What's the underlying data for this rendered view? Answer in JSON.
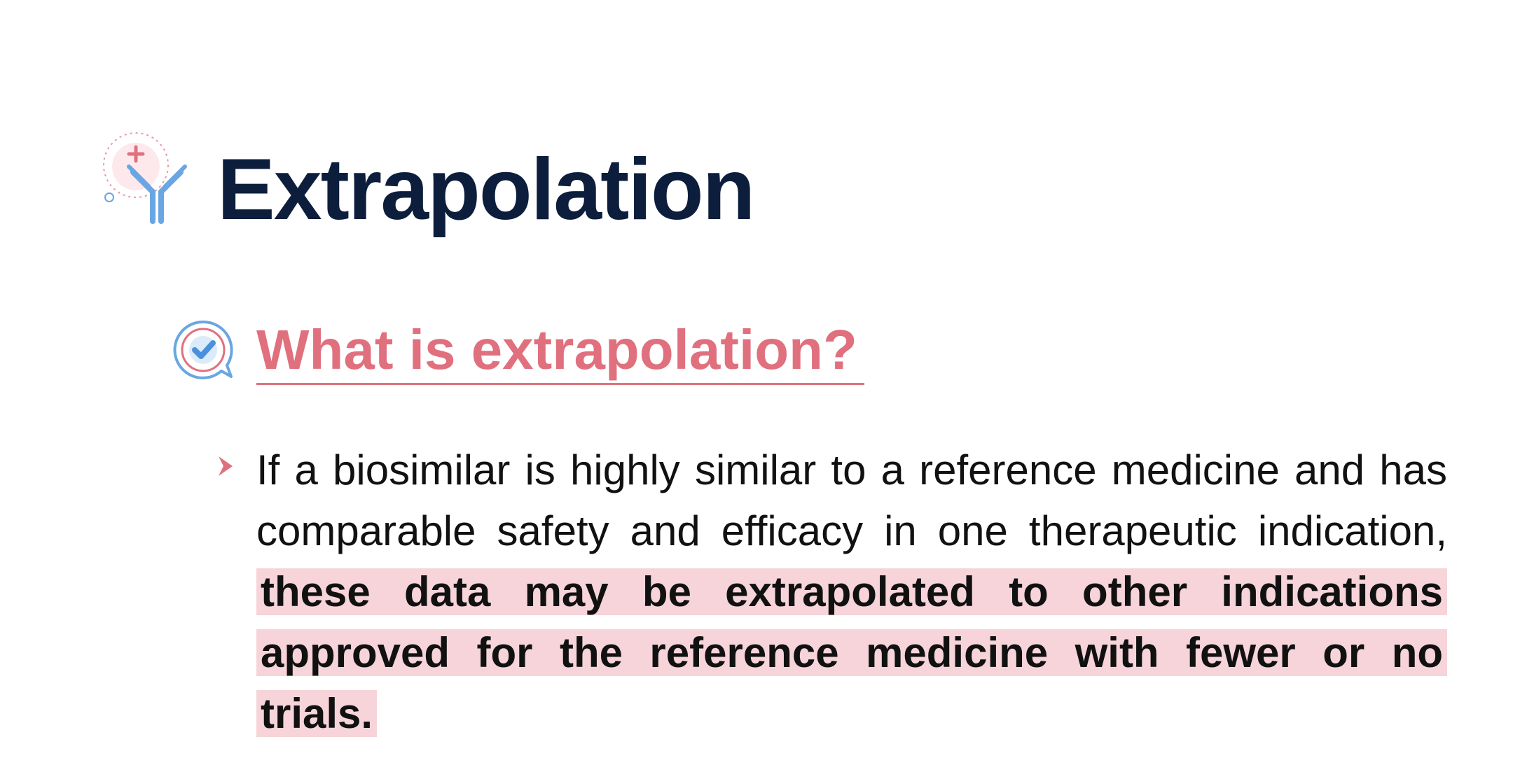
{
  "slide": {
    "title": "Extrapolation",
    "section_heading": "What is extrapolation?",
    "bullet_text": "If a biosimilar is highly similar to a reference medicine and has comparable safety and efficacy in one therapeutic indication, ",
    "bullet_highlight": "these data may be extrapolated to other indications approved for the reference medicine with fewer or no trials.",
    "title_icon": "antibody-icon",
    "section_icon": "checkmark-speech-bubble-icon",
    "bullet_icon": "chevron-right-icon"
  },
  "colors": {
    "title": "#0c1e3c",
    "accent": "#e0707e",
    "highlight": "#f6d4d9",
    "icon_blue": "#6aa6e2",
    "body_text": "#111111"
  }
}
